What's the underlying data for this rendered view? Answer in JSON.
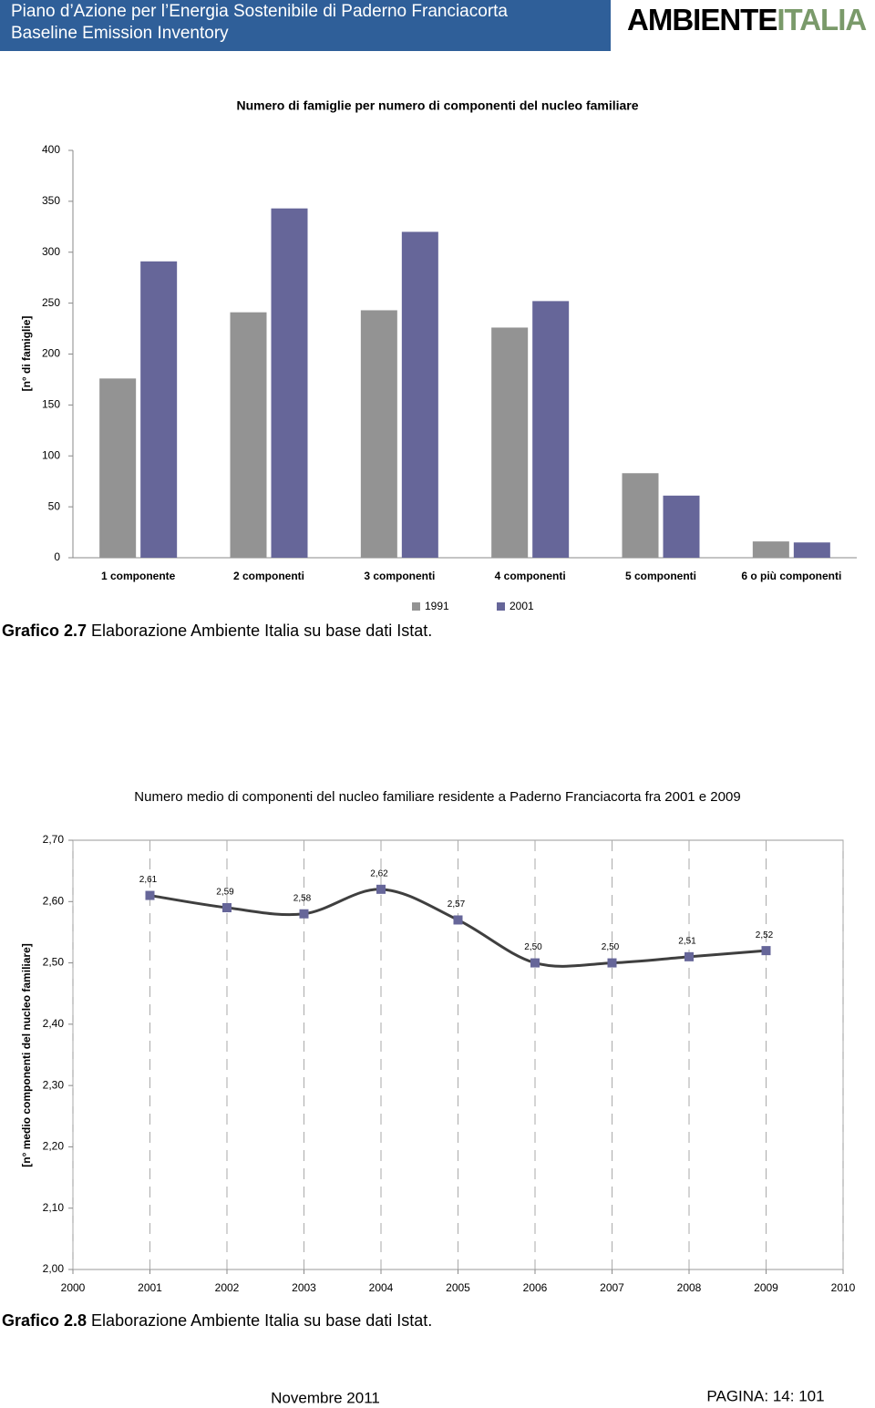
{
  "header": {
    "title": "Piano d’Azione per l’Energia Sostenibile di Paderno Franciacorta",
    "subtitle": "Baseline Emission Inventory",
    "logo_left": "AMBIENTE",
    "logo_right": "ITALIA"
  },
  "chart_data": [
    {
      "type": "bar",
      "title": "Numero di famiglie per numero di componenti del nucleo familiare",
      "y_label": "[n° di famiglie]",
      "categories": [
        "1 componente",
        "2 componenti",
        "3 componenti",
        "4 componenti",
        "5 componenti",
        "6 o più componenti"
      ],
      "series": [
        {
          "name": "1991",
          "color": "#939393",
          "values": [
            176,
            241,
            243,
            226,
            83,
            16
          ]
        },
        {
          "name": "2001",
          "color": "#666699",
          "values": [
            291,
            343,
            320,
            252,
            61,
            15
          ]
        }
      ],
      "ylim": [
        0,
        400
      ],
      "yticks": [
        0,
        50,
        100,
        150,
        200,
        250,
        300,
        350,
        400
      ],
      "grid": false,
      "legend": "bottom"
    },
    {
      "type": "line",
      "title": "Numero medio di componenti del nucleo familiare residente a Paderno Franciacorta fra 2001 e 2009",
      "y_label": "[n° medio componenti del nucleo familiare]",
      "x": [
        2001,
        2002,
        2003,
        2004,
        2005,
        2006,
        2007,
        2008,
        2009
      ],
      "values": [
        2.61,
        2.59,
        2.58,
        2.62,
        2.57,
        2.5,
        2.5,
        2.51,
        2.52
      ],
      "value_labels": [
        "2,61",
        "2,59",
        "2,58",
        "2,62",
        "2,57",
        "2,50",
        "2,50",
        "2,51",
        "2,52"
      ],
      "color": "#3f3f3f",
      "marker_color": "#666699",
      "xlim": [
        2000,
        2010
      ],
      "xticks": [
        2000,
        2001,
        2002,
        2003,
        2004,
        2005,
        2006,
        2007,
        2008,
        2009,
        2010
      ],
      "ylim": [
        2.0,
        2.7
      ],
      "yticks": [
        {
          "value": 2.0,
          "label": "2,00"
        },
        {
          "value": 2.1,
          "label": "2,10"
        },
        {
          "value": 2.2,
          "label": "2,20"
        },
        {
          "value": 2.3,
          "label": "2,30"
        },
        {
          "value": 2.4,
          "label": "2,40"
        },
        {
          "value": 2.5,
          "label": "2,50"
        },
        {
          "value": 2.6,
          "label": "2,60"
        },
        {
          "value": 2.7,
          "label": "2,70"
        }
      ],
      "grid": true
    }
  ],
  "captions": [
    {
      "label": "Grafico 2.7",
      "text": " Elaborazione Ambiente Italia su base dati Istat."
    },
    {
      "label": "Grafico 2.8",
      "text": " Elaborazione Ambiente Italia su base dati Istat."
    }
  ],
  "footer": {
    "date": "Novembre 2011",
    "page": "PAGINA: 14: 101"
  }
}
